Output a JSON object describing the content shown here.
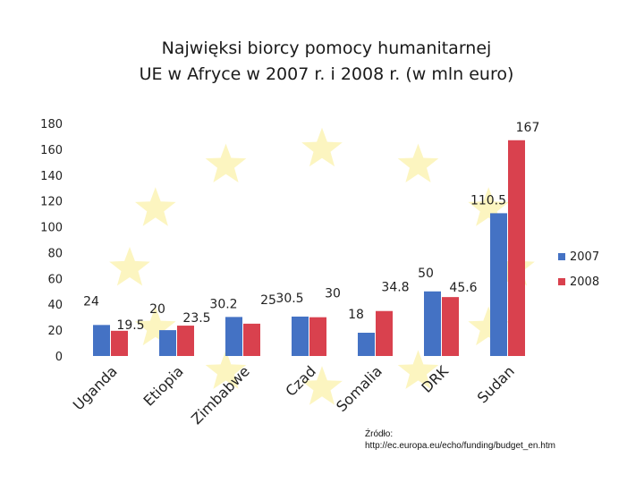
{
  "colors": {
    "series_2007": "#4472c4",
    "series_2008": "#d9414e",
    "star": "#f5e24a"
  },
  "chart_data": {
    "type": "bar",
    "title_lines": [
      "Najwięksi biorcy pomocy humanitarnej",
      "UE w Afryce w 2007 r. i 2008 r. (w mln euro)"
    ],
    "categories": [
      "Uganda",
      "Etiopia",
      "Zimbabwe",
      "Czad",
      "Somalia",
      "DRK",
      "Sudan"
    ],
    "series": [
      {
        "name": "2007",
        "values": [
          24,
          20,
          30.2,
          30.5,
          18,
          50,
          110.5
        ]
      },
      {
        "name": "2008",
        "values": [
          19.5,
          23.5,
          25,
          30,
          34.8,
          45.6,
          167
        ]
      }
    ],
    "data_labels": [
      [
        "24",
        "20",
        "30.2",
        "30.5",
        "18",
        "50",
        "110.5"
      ],
      [
        "19.5",
        "23.5",
        "25",
        "30",
        "34.8",
        "45.6",
        "167"
      ]
    ],
    "yticks": [
      0,
      20,
      40,
      60,
      80,
      100,
      120,
      140,
      160,
      180
    ],
    "ylim": [
      0,
      180
    ],
    "grid": false,
    "legend": "right",
    "source_lines": [
      "Źródło:",
      "http://ec.europa.eu/echo/funding/budget_en.htm"
    ]
  }
}
